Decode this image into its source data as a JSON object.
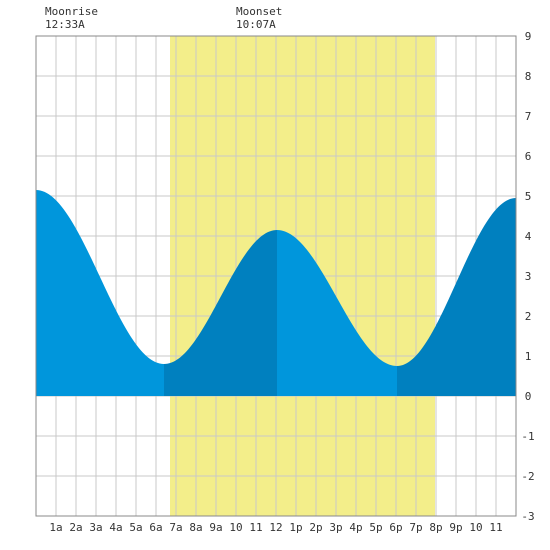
{
  "moon": {
    "rise_label": "Moonrise",
    "rise_time": "12:33A",
    "set_label": "Moonset",
    "set_time": "10:07A"
  },
  "chart_data": {
    "type": "area",
    "title": "",
    "xlabel": "",
    "ylabel": "",
    "xlim": [
      0,
      24
    ],
    "ylim": [
      -3,
      9
    ],
    "grid": true,
    "x_ticks": [
      {
        "x": 1,
        "label": "1a"
      },
      {
        "x": 2,
        "label": "2a"
      },
      {
        "x": 3,
        "label": "3a"
      },
      {
        "x": 4,
        "label": "4a"
      },
      {
        "x": 5,
        "label": "5a"
      },
      {
        "x": 6,
        "label": "6a"
      },
      {
        "x": 7,
        "label": "7a"
      },
      {
        "x": 8,
        "label": "8a"
      },
      {
        "x": 9,
        "label": "9a"
      },
      {
        "x": 10,
        "label": "10"
      },
      {
        "x": 11,
        "label": "11"
      },
      {
        "x": 12,
        "label": "12"
      },
      {
        "x": 13,
        "label": "1p"
      },
      {
        "x": 14,
        "label": "2p"
      },
      {
        "x": 15,
        "label": "3p"
      },
      {
        "x": 16,
        "label": "4p"
      },
      {
        "x": 17,
        "label": "5p"
      },
      {
        "x": 18,
        "label": "6p"
      },
      {
        "x": 19,
        "label": "7p"
      },
      {
        "x": 20,
        "label": "8p"
      },
      {
        "x": 21,
        "label": "9p"
      },
      {
        "x": 22,
        "label": "10"
      },
      {
        "x": 23,
        "label": "11"
      }
    ],
    "y_ticks": [
      -3,
      -2,
      -1,
      0,
      1,
      2,
      3,
      4,
      5,
      6,
      7,
      8,
      9
    ],
    "daylight": {
      "start": 6.7,
      "end": 19.95
    },
    "tide_extremes": [
      {
        "x": 0.0,
        "y": 5.15,
        "kind": "high"
      },
      {
        "x": 6.4,
        "y": 0.8,
        "kind": "low"
      },
      {
        "x": 12.05,
        "y": 4.15,
        "kind": "high"
      },
      {
        "x": 18.05,
        "y": 0.75,
        "kind": "low"
      },
      {
        "x": 24.0,
        "y": 4.95,
        "kind": "high"
      }
    ],
    "colors": {
      "tide_rising": "#0080bf",
      "tide_falling": "#0096dc",
      "daylight": "#f3ee8a",
      "grid": "#c8c8c8",
      "background": "#ffffff"
    }
  }
}
